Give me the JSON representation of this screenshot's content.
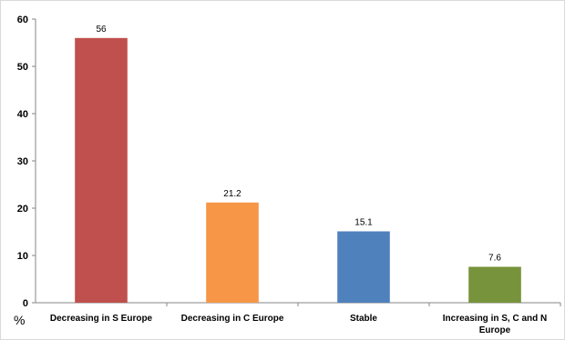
{
  "chart_data": {
    "type": "bar",
    "categories": [
      "Decreasing in S Europe",
      "Decreasing in C Europe",
      "Stable",
      "Increasing in S, C and N Europe"
    ],
    "values": [
      56,
      21.2,
      15.1,
      7.6
    ],
    "data_labels": [
      "56",
      "21.2",
      "15.1",
      "7.6"
    ],
    "colors": [
      "#c0504d",
      "#f79646",
      "#4f81bd",
      "#77933c"
    ],
    "ylim": [
      0,
      60
    ],
    "yticks": [
      0,
      10,
      20,
      30,
      40,
      50,
      60
    ],
    "ylabel": "%",
    "xlabel": "",
    "title": "",
    "grid": false,
    "legend": "none"
  }
}
